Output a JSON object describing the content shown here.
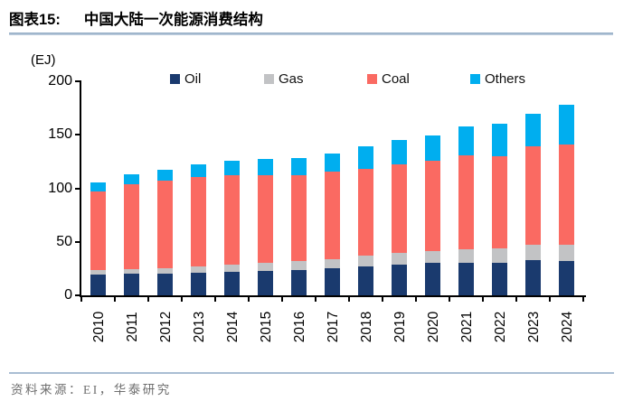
{
  "header": {
    "figure_label": "图表15:",
    "title": "中国大陆一次能源消费结构"
  },
  "chart_data": {
    "type": "bar",
    "stacked": true,
    "title": "中国大陆一次能源消费结构",
    "unit_label": "(EJ)",
    "xlabel": "",
    "ylabel": "EJ",
    "ylim": [
      0,
      200
    ],
    "yticks": [
      0,
      50,
      100,
      150,
      200
    ],
    "grid": false,
    "legend_position": "top",
    "categories": [
      "2010",
      "2011",
      "2012",
      "2013",
      "2014",
      "2015",
      "2016",
      "2017",
      "2018",
      "2019",
      "2020",
      "2021",
      "2022",
      "2023",
      "2024"
    ],
    "series": [
      {
        "name": "Oil",
        "color": "#1A3A6E",
        "values": [
          19.5,
          20.0,
          20.5,
          21.0,
          22.0,
          23.0,
          24.0,
          25.5,
          27.0,
          29.0,
          30.0,
          30.0,
          30.0,
          32.5,
          32.0
        ]
      },
      {
        "name": "Gas",
        "color": "#C2C3C5",
        "values": [
          4.0,
          4.5,
          5.0,
          6.0,
          7.0,
          7.5,
          8.0,
          8.5,
          10.0,
          10.5,
          11.0,
          13.0,
          13.5,
          14.5,
          15.5
        ]
      },
      {
        "name": "Coal",
        "color": "#FA6A62",
        "values": [
          73.5,
          79.5,
          81.5,
          83.5,
          83.0,
          82.0,
          80.5,
          81.5,
          81.5,
          82.5,
          84.5,
          87.5,
          86.5,
          92.0,
          93.5
        ]
      },
      {
        "name": "Others",
        "color": "#00AEEF",
        "values": [
          8.5,
          9.5,
          10.5,
          12.0,
          13.5,
          15.0,
          16.0,
          17.0,
          20.5,
          23.5,
          23.5,
          27.0,
          30.5,
          30.5,
          37.0
        ]
      }
    ],
    "totals": [
      105.5,
      113.5,
      117.5,
      122.5,
      125.5,
      127.5,
      128.5,
      132.5,
      139.0,
      145.5,
      149.0,
      157.5,
      160.5,
      169.5,
      178.0
    ]
  },
  "footer": {
    "source_text": "资料来源：EI，华泰研究"
  },
  "colors": {
    "divider": "#9DB3CB",
    "axis": "#000000",
    "footer_text": "#6E6E6E"
  }
}
